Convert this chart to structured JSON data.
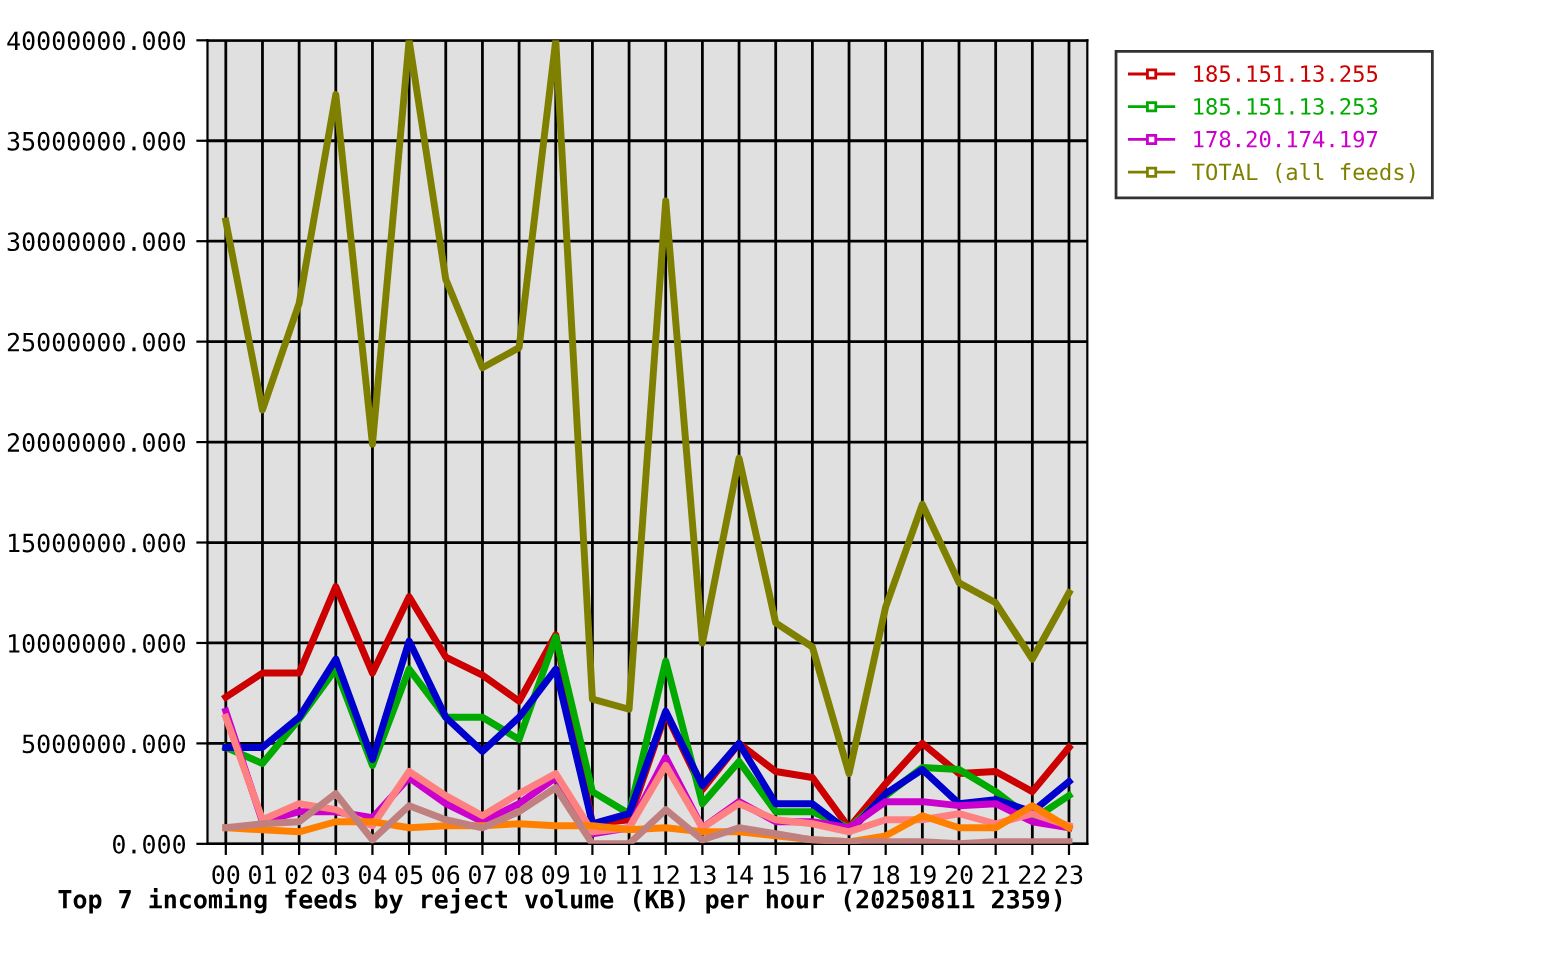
{
  "chart_data": {
    "type": "line",
    "title": "Top 7 incoming feeds by reject volume (KB) per hour (20250811 2359)",
    "categories": [
      "00",
      "01",
      "02",
      "03",
      "04",
      "05",
      "06",
      "07",
      "08",
      "09",
      "10",
      "11",
      "12",
      "13",
      "14",
      "15",
      "16",
      "17",
      "18",
      "19",
      "20",
      "21",
      "22",
      "23"
    ],
    "ylim": [
      0,
      40000000
    ],
    "yticks": [
      {
        "value": 0,
        "label": "0.000"
      },
      {
        "value": 5000000,
        "label": "5000000.000"
      },
      {
        "value": 10000000,
        "label": "10000000.000"
      },
      {
        "value": 15000000,
        "label": "15000000.000"
      },
      {
        "value": 20000000,
        "label": "20000000.000"
      },
      {
        "value": 25000000,
        "label": "25000000.000"
      },
      {
        "value": 30000000,
        "label": "30000000.000"
      },
      {
        "value": 35000000,
        "label": "35000000.000"
      },
      {
        "value": 40000000,
        "label": "40000000.000"
      }
    ],
    "grid": true,
    "legend": "top right",
    "series": [
      {
        "name": "185.151.13.255",
        "color": "#cc0000",
        "values": [
          7300000,
          8500000,
          8500000,
          12800000,
          8500000,
          12300000,
          9300000,
          8400000,
          7100000,
          10400000,
          1000000,
          1200000,
          6500000,
          2700000,
          5000000,
          3600000,
          3300000,
          800000,
          3000000,
          5000000,
          3500000,
          3600000,
          2600000,
          4800000
        ]
      },
      {
        "name": "185.151.13.253",
        "color": "#00aa00",
        "values": [
          4800000,
          4000000,
          6200000,
          8700000,
          3900000,
          8700000,
          6300000,
          6300000,
          5200000,
          10300000,
          2600000,
          1500000,
          9100000,
          2000000,
          4100000,
          1600000,
          1600000,
          800000,
          2400000,
          3800000,
          3700000,
          2600000,
          1200000,
          2400000
        ]
      },
      {
        "color": "#0000cc",
        "values": [
          4800000,
          4800000,
          6300000,
          9200000,
          4200000,
          10100000,
          6300000,
          4600000,
          6300000,
          8700000,
          1000000,
          1500000,
          6600000,
          2900000,
          5000000,
          2000000,
          2000000,
          600000,
          2500000,
          3700000,
          2000000,
          2200000,
          1600000,
          3100000
        ]
      },
      {
        "name": "178.20.174.197",
        "color": "#cc00cc",
        "values": [
          6600000,
          1100000,
          1600000,
          1600000,
          1300000,
          3300000,
          2000000,
          1100000,
          2000000,
          3300000,
          500000,
          800000,
          4300000,
          800000,
          2100000,
          1100000,
          1100000,
          800000,
          2100000,
          2100000,
          1900000,
          2000000,
          1100000,
          800000
        ]
      },
      {
        "color": "#ff8080",
        "values": [
          6300000,
          1200000,
          2000000,
          1700000,
          900000,
          3600000,
          2400000,
          1400000,
          2500000,
          3500000,
          600000,
          800000,
          3900000,
          800000,
          2000000,
          1200000,
          1000000,
          600000,
          1200000,
          1200000,
          1500000,
          1000000,
          1500000,
          900000
        ]
      },
      {
        "color": "#ff8000",
        "values": [
          800000,
          700000,
          600000,
          1100000,
          1100000,
          800000,
          900000,
          900000,
          1000000,
          900000,
          900000,
          700000,
          800000,
          600000,
          600000,
          400000,
          200000,
          100000,
          400000,
          1400000,
          800000,
          800000,
          1900000,
          800000
        ]
      },
      {
        "color": "#c08080",
        "values": [
          800000,
          1000000,
          1100000,
          2500000,
          200000,
          1900000,
          1200000,
          800000,
          1600000,
          2800000,
          0,
          0,
          1700000,
          200000,
          800000,
          500000,
          200000,
          100000,
          100000,
          100000,
          0,
          100000,
          100000,
          100000
        ]
      },
      {
        "name": "TOTAL (all feeds)",
        "color": "#808000",
        "values": [
          31000000,
          21600000,
          26900000,
          37300000,
          19900000,
          40000000,
          28100000,
          23700000,
          24700000,
          40000000,
          7200000,
          6700000,
          32000000,
          10000000,
          19200000,
          11000000,
          9800000,
          3500000,
          11800000,
          16900000,
          13000000,
          12000000,
          9200000,
          12500000
        ]
      }
    ]
  }
}
